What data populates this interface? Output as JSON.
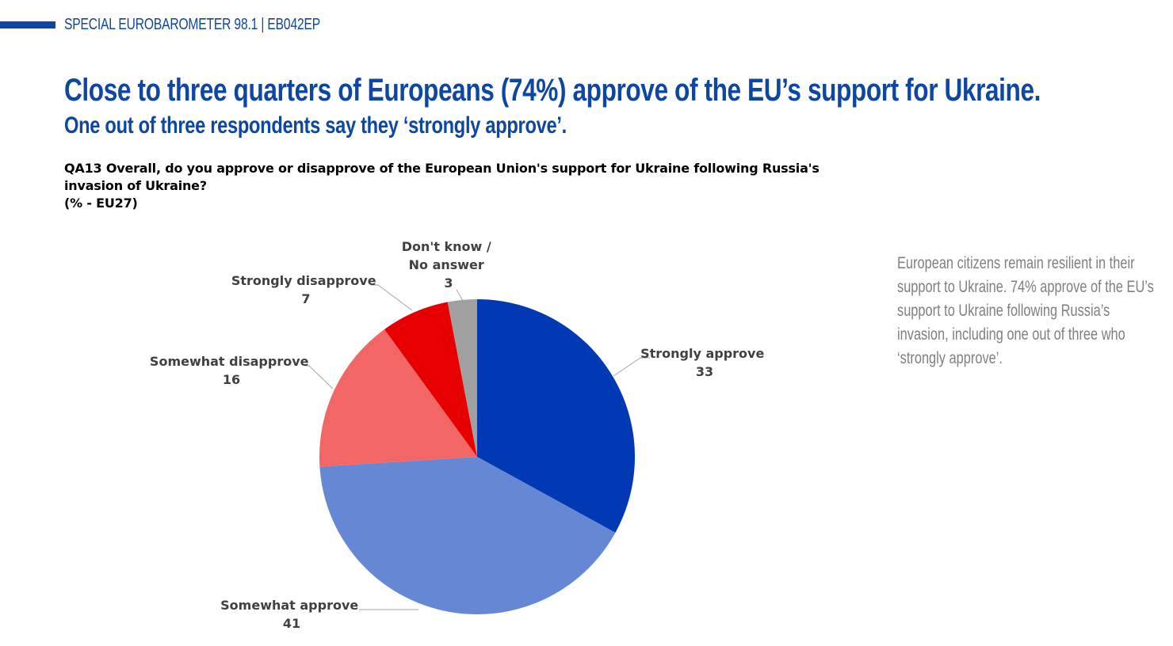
{
  "header": {
    "label": "SPECIAL EUROBAROMETER 98.1 | EB042EP"
  },
  "title": "Close to three quarters of Europeans (74%) approve of the EU’s support for Ukraine.",
  "subtitle": "One out of three respondents say they ‘strongly approve’.",
  "question": {
    "line1": "QA13  Overall, do you approve or disapprove of the European Union's support for Ukraine following Russia's",
    "line2": "invasion of Ukraine?",
    "line3": "(% - EU27)"
  },
  "side_note": "European citizens remain resilient in their support to Ukraine. 74% approve of the EU’s support to Ukraine following Russia’s invasion, including one out of three who ‘strongly approve’.",
  "chart_data": {
    "type": "pie",
    "slices": [
      {
        "label": "Strongly approve",
        "value": 33,
        "color": "#0039b3"
      },
      {
        "label": "Somewhat approve",
        "value": 41,
        "color": "#6688d4"
      },
      {
        "label": "Somewhat disapprove",
        "value": 16,
        "color": "#f26666"
      },
      {
        "label": "Strongly disapprove",
        "value": 7,
        "color": "#e60000"
      },
      {
        "label": "Don't know / No answer",
        "value": 3,
        "color": "#a0a0a0"
      }
    ],
    "legend": "none",
    "leader_line_color": "#a6a6a6"
  }
}
